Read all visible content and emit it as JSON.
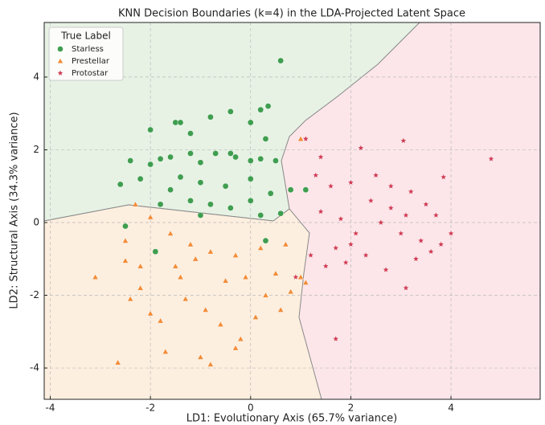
{
  "chart_data": {
    "type": "scatter",
    "title": "KNN Decision Boundaries (k=4) in the LDA-Projected Latent Space",
    "xlabel": "LD1: Evolutionary Axis (65.7% variance)",
    "ylabel": "LD2: Structural Axis (34.3% variance)",
    "xlim": [
      -4.12,
      5.78
    ],
    "ylim": [
      -4.86,
      5.5
    ],
    "xticks": [
      -4,
      -2,
      0,
      2,
      4
    ],
    "yticks": [
      -4,
      -2,
      0,
      2,
      4
    ],
    "grid": true,
    "legend_title": "True Label",
    "legend_loc": "upper left",
    "series": [
      {
        "name": "Starless",
        "color": "#3f9e4f",
        "marker": "o",
        "x": [
          0.6,
          -2,
          -1.5,
          -1.4,
          -0.4,
          0.2,
          0.35,
          -1.2,
          -0.8,
          0,
          0.3,
          -2.6,
          -2.4,
          -2,
          -1.8,
          -1.6,
          -1.2,
          -1,
          -0.7,
          -0.4,
          -0.3,
          0,
          0.2,
          0.5,
          -2.2,
          -1.4,
          -1,
          -0.5,
          0,
          -1.6,
          -1.2,
          -0.8,
          -0.4,
          0,
          0.4,
          -1.8,
          -2.5,
          -1.9,
          0.3,
          1.1,
          0.8,
          -1,
          0.2,
          0.6
        ],
        "values": [
          4.45,
          2.55,
          2.75,
          2.75,
          3.05,
          3.1,
          3.2,
          2.45,
          2.9,
          2.75,
          2.3,
          1.05,
          1.7,
          1.6,
          1.75,
          1.8,
          1.9,
          1.65,
          1.9,
          1.9,
          1.8,
          1.7,
          1.75,
          1.7,
          1.2,
          1.25,
          1.1,
          1.0,
          1.2,
          0.9,
          0.6,
          0.5,
          0.4,
          0.6,
          0.8,
          0.5,
          -0.1,
          -0.8,
          -0.5,
          0.9,
          0.9,
          0.2,
          0.2,
          0.25
        ]
      },
      {
        "name": "Prestellar",
        "color": "#f28c38",
        "marker": "^",
        "x": [
          -2.65,
          -3.1,
          -2.5,
          -2.4,
          -2.2,
          -2.0,
          -1.8,
          -1.7,
          -1.5,
          -1.3,
          -1.0,
          -0.9,
          -0.8,
          -0.6,
          -0.3,
          -0.5,
          -0.1,
          0.3,
          0.5,
          0.8,
          1.0,
          1.1,
          0.6,
          1.0,
          -2.3,
          -2.0,
          -1.6,
          -1.2,
          -0.8,
          -0.3,
          0.2,
          0.7,
          -2.5,
          -1.4,
          -0.2,
          0.1,
          -2.2,
          -1.1
        ],
        "values": [
          -3.85,
          -1.5,
          -1.05,
          -2.1,
          -1.8,
          -2.5,
          -2.7,
          -3.55,
          -1.2,
          -2.1,
          -3.7,
          -2.4,
          -3.9,
          -2.8,
          -3.45,
          -1.6,
          -1.5,
          -2.0,
          -1.4,
          -1.9,
          -1.5,
          -1.65,
          -2.4,
          2.3,
          0.5,
          0.15,
          -0.3,
          -0.6,
          -0.8,
          -0.9,
          -0.7,
          -0.6,
          -0.5,
          -1.5,
          -3.2,
          -2.6,
          -1.2,
          -1.0
        ]
      },
      {
        "name": "Protostar",
        "color": "#d03a52",
        "marker": "*",
        "x": [
          1.1,
          3.05,
          2.2,
          4.8,
          1.4,
          3.85,
          2.0,
          2.5,
          2.8,
          3.2,
          3.5,
          3.7,
          4.0,
          3.8,
          3.3,
          3.1,
          2.7,
          2.3,
          2.0,
          1.7,
          1.5,
          1.2,
          1.4,
          1.8,
          2.1,
          2.6,
          3.0,
          3.4,
          1.7,
          0.9,
          1.9,
          2.8,
          1.6,
          1.3,
          3.6,
          2.4,
          3.1
        ],
        "values": [
          2.3,
          2.25,
          2.05,
          1.75,
          1.8,
          1.25,
          1.1,
          1.3,
          1.0,
          0.85,
          0.5,
          0.2,
          -0.3,
          -0.6,
          -1.0,
          -1.8,
          -1.3,
          -0.9,
          -0.6,
          -0.7,
          -1.2,
          -0.9,
          0.3,
          0.1,
          -0.3,
          0.0,
          -0.3,
          -0.5,
          -3.2,
          -1.5,
          -1.1,
          0.4,
          1.0,
          1.3,
          -0.8,
          0.6,
          0.2
        ]
      }
    ]
  }
}
